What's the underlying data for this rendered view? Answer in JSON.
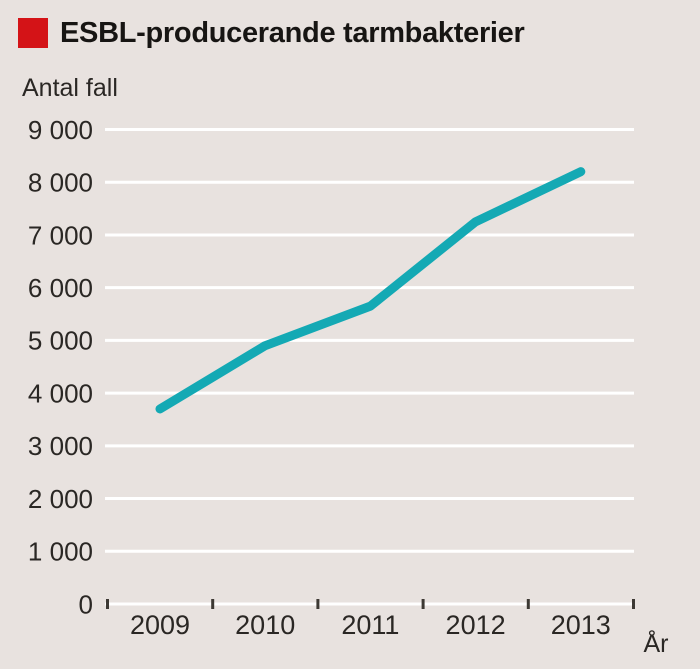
{
  "header": {
    "title": "ESBL-producerande tarmbakterier",
    "bullet_color": "#d41317"
  },
  "chart_data": {
    "type": "line",
    "title": "ESBL-producerande tarmbakterier",
    "ylabel": "Antal fall",
    "xlabel": "År",
    "categories": [
      "2009",
      "2010",
      "2011",
      "2012",
      "2013"
    ],
    "series": [
      {
        "name": "ESBL-producerande tarmbakterier",
        "values": [
          3700,
          4900,
          5650,
          7250,
          8200
        ]
      }
    ],
    "ylim": [
      0,
      9000
    ],
    "ytick_step": 1000,
    "ytick_labels": [
      "0",
      "1 000",
      "2 000",
      "3 000",
      "4 000",
      "5 000",
      "6 000",
      "7 000",
      "8 000",
      "9 000"
    ],
    "grid": true,
    "legend_position": "none",
    "colors": {
      "line": "#14a9b4",
      "background": "#e8e2df",
      "gridline": "#ffffff",
      "tick_mark": "#3d3934",
      "text": "#2a2724"
    }
  }
}
